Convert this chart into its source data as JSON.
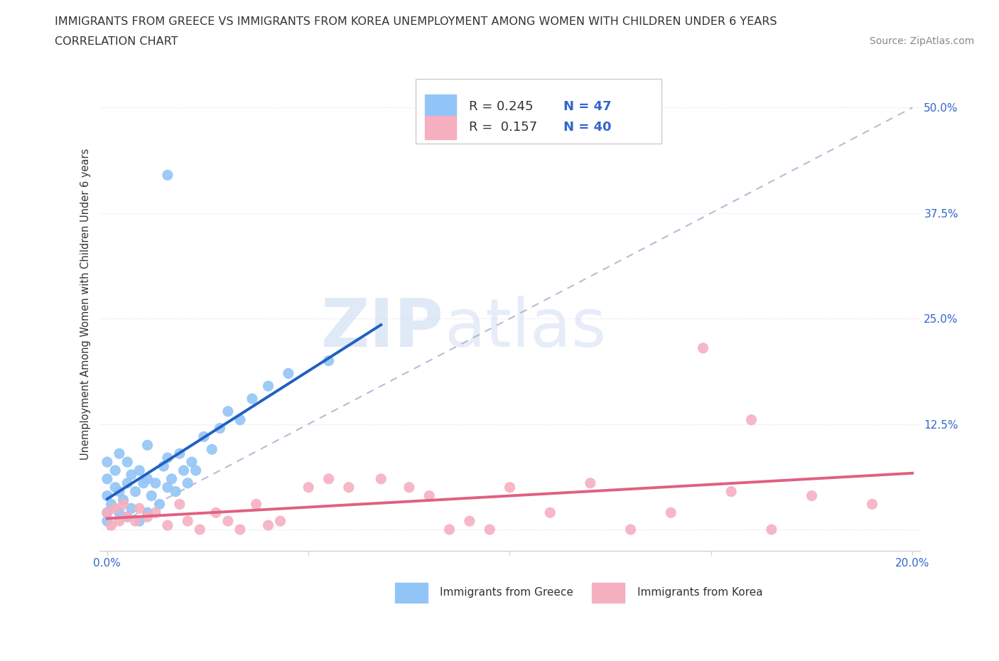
{
  "title_line1": "IMMIGRANTS FROM GREECE VS IMMIGRANTS FROM KOREA UNEMPLOYMENT AMONG WOMEN WITH CHILDREN UNDER 6 YEARS",
  "title_line2": "CORRELATION CHART",
  "source_text": "Source: ZipAtlas.com",
  "ylabel": "Unemployment Among Women with Children Under 6 years",
  "xlim": [
    -0.002,
    0.202
  ],
  "ylim": [
    -0.025,
    0.56
  ],
  "xticks": [
    0.0,
    0.05,
    0.1,
    0.15,
    0.2
  ],
  "xticklabels": [
    "0.0%",
    "",
    "",
    "",
    "20.0%"
  ],
  "yticks": [
    0.0,
    0.125,
    0.25,
    0.375,
    0.5
  ],
  "yticklabels": [
    "",
    "12.5%",
    "25.0%",
    "37.5%",
    "50.0%"
  ],
  "greece_color": "#92c5f7",
  "korea_color": "#f5afc0",
  "greece_line_color": "#2060c0",
  "korea_line_color": "#e06080",
  "greece_R": 0.245,
  "greece_N": 47,
  "korea_R": 0.157,
  "korea_N": 40,
  "legend_label1": "Immigrants from Greece",
  "legend_label2": "Immigrants from Korea",
  "watermark_zip": "ZIP",
  "watermark_atlas": "atlas",
  "tick_color": "#3366cc",
  "title_color": "#333333",
  "source_color": "#888888",
  "ref_line_color": "#aaaacc",
  "grid_color": "#ddddee",
  "greece_x": [
    0.0,
    0.0,
    0.0,
    0.0,
    0.0,
    0.001,
    0.002,
    0.002,
    0.003,
    0.003,
    0.003,
    0.004,
    0.005,
    0.005,
    0.005,
    0.006,
    0.006,
    0.007,
    0.008,
    0.008,
    0.009,
    0.01,
    0.01,
    0.01,
    0.011,
    0.012,
    0.013,
    0.014,
    0.015,
    0.015,
    0.016,
    0.017,
    0.018,
    0.019,
    0.02,
    0.021,
    0.022,
    0.024,
    0.026,
    0.028,
    0.03,
    0.033,
    0.036,
    0.04,
    0.045,
    0.055,
    0.015
  ],
  "greece_y": [
    0.02,
    0.04,
    0.06,
    0.01,
    0.08,
    0.03,
    0.05,
    0.07,
    0.02,
    0.045,
    0.09,
    0.035,
    0.015,
    0.055,
    0.08,
    0.025,
    0.065,
    0.045,
    0.01,
    0.07,
    0.055,
    0.02,
    0.06,
    0.1,
    0.04,
    0.055,
    0.03,
    0.075,
    0.05,
    0.085,
    0.06,
    0.045,
    0.09,
    0.07,
    0.055,
    0.08,
    0.07,
    0.11,
    0.095,
    0.12,
    0.14,
    0.13,
    0.155,
    0.17,
    0.185,
    0.2,
    0.42
  ],
  "korea_x": [
    0.0,
    0.001,
    0.002,
    0.003,
    0.004,
    0.005,
    0.007,
    0.008,
    0.01,
    0.012,
    0.015,
    0.018,
    0.02,
    0.023,
    0.027,
    0.03,
    0.033,
    0.037,
    0.04,
    0.043,
    0.05,
    0.055,
    0.06,
    0.068,
    0.075,
    0.08,
    0.085,
    0.09,
    0.095,
    0.1,
    0.11,
    0.12,
    0.13,
    0.14,
    0.148,
    0.155,
    0.16,
    0.165,
    0.175,
    0.19
  ],
  "korea_y": [
    0.02,
    0.005,
    0.025,
    0.01,
    0.03,
    0.015,
    0.01,
    0.025,
    0.015,
    0.02,
    0.005,
    0.03,
    0.01,
    0.0,
    0.02,
    0.01,
    0.0,
    0.03,
    0.005,
    0.01,
    0.05,
    0.06,
    0.05,
    0.06,
    0.05,
    0.04,
    0.0,
    0.01,
    0.0,
    0.05,
    0.02,
    0.055,
    0.0,
    0.02,
    0.215,
    0.045,
    0.13,
    0.0,
    0.04,
    0.03
  ]
}
